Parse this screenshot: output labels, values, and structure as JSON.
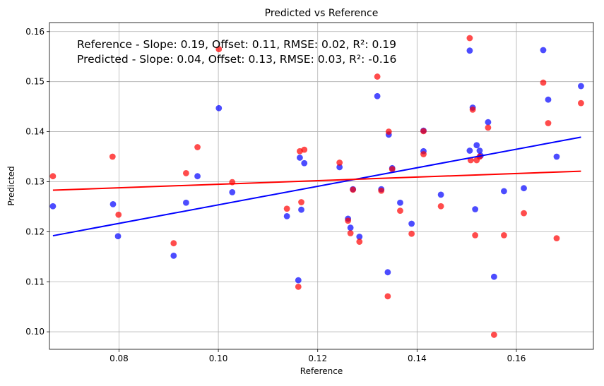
{
  "chart_data": {
    "type": "scatter",
    "title": "Predicted vs Reference",
    "xlabel": "Reference",
    "ylabel": "Predicted",
    "xlim": [
      0.066,
      0.1755
    ],
    "ylim": [
      0.0965,
      0.1618
    ],
    "xticks": [
      0.08,
      0.1,
      0.12,
      0.14,
      0.16
    ],
    "xtick_labels": [
      "0.08",
      "0.10",
      "0.12",
      "0.14",
      "0.16"
    ],
    "yticks": [
      0.1,
      0.11,
      0.12,
      0.13,
      0.14,
      0.15,
      0.16
    ],
    "ytick_labels": [
      "0.10",
      "0.11",
      "0.12",
      "0.13",
      "0.14",
      "0.15",
      "0.16"
    ],
    "grid": true,
    "annotations": [
      "Reference - Slope: 0.19, Offset: 0.11, RMSE: 0.02, R²: 0.19",
      "Predicted - Slope: 0.04, Offset: 0.13, RMSE: 0.03, R²: -0.16"
    ],
    "series": [
      {
        "color": "#0000ff",
        "alpha": 0.7,
        "points": [
          [
            0.0667,
            0.1251
          ],
          [
            0.0788,
            0.1255
          ],
          [
            0.0798,
            0.1191
          ],
          [
            0.091,
            0.1152
          ],
          [
            0.0935,
            0.1258
          ],
          [
            0.0958,
            0.1311
          ],
          [
            0.1001,
            0.1447
          ],
          [
            0.1028,
            0.1279
          ],
          [
            0.1138,
            0.1231
          ],
          [
            0.1161,
            0.1103
          ],
          [
            0.1164,
            0.1348
          ],
          [
            0.1167,
            0.1244
          ],
          [
            0.1173,
            0.1337
          ],
          [
            0.1244,
            0.1329
          ],
          [
            0.1261,
            0.1226
          ],
          [
            0.1266,
            0.1208
          ],
          [
            0.1271,
            0.1285
          ],
          [
            0.1284,
            0.119
          ],
          [
            0.132,
            0.1471
          ],
          [
            0.1328,
            0.1285
          ],
          [
            0.1341,
            0.1119
          ],
          [
            0.1343,
            0.1394
          ],
          [
            0.135,
            0.1327
          ],
          [
            0.1366,
            0.1258
          ],
          [
            0.1389,
            0.1216
          ],
          [
            0.1413,
            0.1402
          ],
          [
            0.1413,
            0.1361
          ],
          [
            0.1448,
            0.1274
          ],
          [
            0.1506,
            0.1362
          ],
          [
            0.1506,
            0.1562
          ],
          [
            0.1512,
            0.1448
          ],
          [
            0.1517,
            0.1245
          ],
          [
            0.152,
            0.1373
          ],
          [
            0.1526,
            0.1362
          ],
          [
            0.1528,
            0.1352
          ],
          [
            0.1543,
            0.1419
          ],
          [
            0.1555,
            0.111
          ],
          [
            0.1575,
            0.1281
          ],
          [
            0.1615,
            0.1287
          ],
          [
            0.1654,
            0.1563
          ],
          [
            0.1664,
            0.1464
          ],
          [
            0.1681,
            0.135
          ],
          [
            0.173,
            0.1491
          ]
        ]
      },
      {
        "color": "#ff0000",
        "alpha": 0.7,
        "points": [
          [
            0.0667,
            0.1311
          ],
          [
            0.0787,
            0.135
          ],
          [
            0.0799,
            0.1234
          ],
          [
            0.091,
            0.1177
          ],
          [
            0.0935,
            0.1317
          ],
          [
            0.0958,
            0.1369
          ],
          [
            0.1001,
            0.1565
          ],
          [
            0.1028,
            0.1299
          ],
          [
            0.1138,
            0.1246
          ],
          [
            0.1161,
            0.109
          ],
          [
            0.1164,
            0.1361
          ],
          [
            0.1167,
            0.1259
          ],
          [
            0.1173,
            0.1364
          ],
          [
            0.1244,
            0.1338
          ],
          [
            0.1261,
            0.1222
          ],
          [
            0.1266,
            0.1197
          ],
          [
            0.1271,
            0.1284
          ],
          [
            0.1284,
            0.118
          ],
          [
            0.132,
            0.151
          ],
          [
            0.1328,
            0.1282
          ],
          [
            0.1341,
            0.1071
          ],
          [
            0.1343,
            0.14
          ],
          [
            0.135,
            0.1325
          ],
          [
            0.1366,
            0.1242
          ],
          [
            0.1389,
            0.1196
          ],
          [
            0.1413,
            0.1401
          ],
          [
            0.1413,
            0.1355
          ],
          [
            0.1448,
            0.1251
          ],
          [
            0.1506,
            0.1587
          ],
          [
            0.1508,
            0.1343
          ],
          [
            0.1512,
            0.1444
          ],
          [
            0.1517,
            0.1193
          ],
          [
            0.152,
            0.1343
          ],
          [
            0.1526,
            0.135
          ],
          [
            0.1543,
            0.1408
          ],
          [
            0.1555,
            0.0994
          ],
          [
            0.1575,
            0.1193
          ],
          [
            0.1615,
            0.1237
          ],
          [
            0.1654,
            0.1498
          ],
          [
            0.1664,
            0.1417
          ],
          [
            0.1681,
            0.1187
          ],
          [
            0.173,
            0.1457
          ]
        ]
      }
    ],
    "fit_lines": [
      {
        "color": "#0000ff",
        "x": [
          0.0667,
          0.173
        ],
        "y": [
          0.1192,
          0.1389
        ]
      },
      {
        "color": "#ff0000",
        "x": [
          0.0667,
          0.173
        ],
        "y": [
          0.1283,
          0.1321
        ]
      }
    ]
  }
}
